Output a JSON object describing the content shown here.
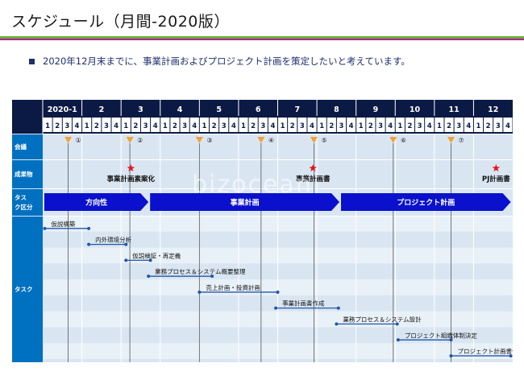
{
  "title": "スケジュール（月間-2020版）",
  "bullet": "2020年12月末までに、事業計画およびプロジェクト計画を策定したいと考えています。",
  "months": [
    "2020-1",
    "2",
    "3",
    "4",
    "5",
    "6",
    "7",
    "8",
    "9",
    "10",
    "11",
    "12"
  ],
  "weeks": [
    "1",
    "2",
    "3",
    "4"
  ],
  "row_labels": {
    "meeting": "会議",
    "deliverable": "成果物",
    "phase": "タスク区分",
    "task": "タスク"
  },
  "meetings": [
    {
      "label": "①",
      "week": 2.6
    },
    {
      "label": "②",
      "week": 8.9
    },
    {
      "label": "③",
      "week": 16.0
    },
    {
      "label": "④",
      "week": 22.3
    },
    {
      "label": "⑤",
      "week": 27.7
    },
    {
      "label": "⑥",
      "week": 35.8
    },
    {
      "label": "⑦",
      "week": 41.7
    }
  ],
  "deliverables": [
    {
      "label": "事業計画素案化",
      "week": 9.0
    },
    {
      "label": "事業計画書",
      "week": 27.6
    },
    {
      "label": "PJ計画書",
      "week": 46.3
    }
  ],
  "phases": [
    {
      "label": "方向性",
      "start": 0,
      "end": 10.8
    },
    {
      "label": "事業計画",
      "start": 10.8,
      "end": 30.3
    },
    {
      "label": "プロジェクト計画",
      "start": 30.3,
      "end": 47.8
    }
  ],
  "tasks": [
    {
      "label": "仮説構築",
      "start": 0.2,
      "end": 4.7
    },
    {
      "label": "内外環境分析",
      "start": 4.7,
      "end": 8.5
    },
    {
      "label": "仮説検証・再定義",
      "start": 8.5,
      "end": 11.0
    },
    {
      "label": "業務プロセス＆システム概要整理",
      "start": 10.8,
      "end": 17.3
    },
    {
      "label": "売上計画・投資計画",
      "start": 16.0,
      "end": 24.0
    },
    {
      "label": "事業計画書作成",
      "start": 23.8,
      "end": 30.2
    },
    {
      "label": "業務プロセス＆システム設計",
      "start": 30.0,
      "end": 36.2
    },
    {
      "label": "プロジェクト組織体制決定",
      "start": 36.3,
      "end": 41.7
    },
    {
      "label": "プロジェクト計画書作成",
      "start": 41.7,
      "end": 47.8
    }
  ],
  "watermark": "bizocean",
  "colors": {
    "header": "#0a1a44",
    "label_cell": "#0070c0",
    "phase_arrow": "#0a10cc",
    "meeting_marker": "#f0a23a",
    "star": "#e8141e",
    "task_line": "#2255aa"
  }
}
